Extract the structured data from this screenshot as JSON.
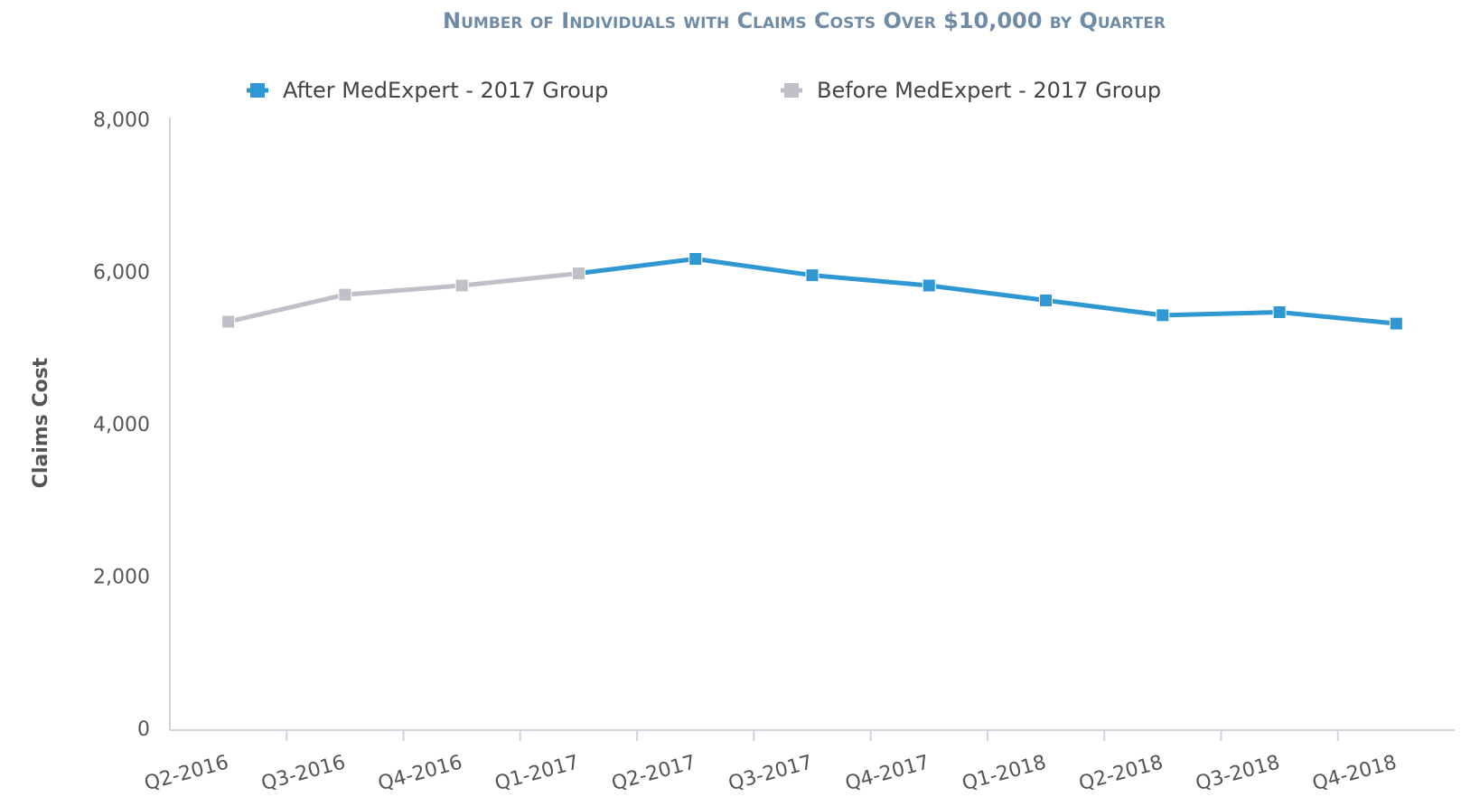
{
  "chart_data": {
    "type": "line",
    "title": "Number of Individuals with Claims Costs Over $10,000 by Quarter",
    "y_label": "Claims Cost",
    "categories": [
      "Q2-2016",
      "Q3-2016",
      "Q4-2016",
      "Q1-2017",
      "Q2-2017",
      "Q3-2017",
      "Q4-2017",
      "Q1-2018",
      "Q2-2018",
      "Q3-2018",
      "Q4-2018"
    ],
    "series": [
      {
        "name": "After MedExpert - 2017 Group",
        "color": "#2f97d2",
        "values": [
          null,
          null,
          null,
          6000,
          6190,
          5975,
          5840,
          5645,
          5450,
          5490,
          5340
        ]
      },
      {
        "name": "Before MedExpert - 2017 Group",
        "color": "#c0c0c8",
        "values": [
          5365,
          5720,
          5840,
          6000,
          null,
          null,
          null,
          null,
          null,
          null,
          null
        ]
      }
    ],
    "ylim": [
      0,
      8000
    ],
    "yticks": [
      {
        "value": 0,
        "label": "0"
      },
      {
        "value": 2000,
        "label": "2,000"
      },
      {
        "value": 4000,
        "label": "4,000"
      },
      {
        "value": 6000,
        "label": "6,000"
      },
      {
        "value": 8000,
        "label": "8,000"
      }
    ],
    "grid": false,
    "legend": "top"
  }
}
